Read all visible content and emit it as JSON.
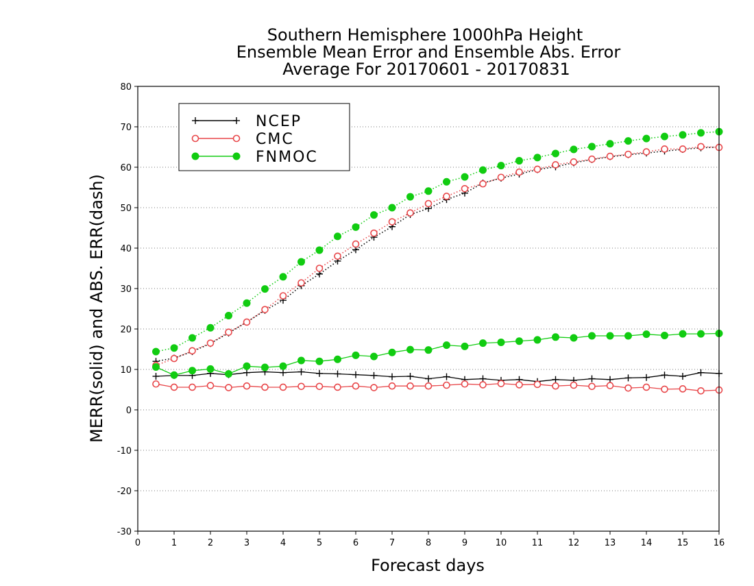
{
  "chart_data": {
    "type": "line",
    "title_lines": [
      "Southern Hemisphere 1000hPa Height",
      "Ensemble Mean Error and Ensemble Abs. Error",
      "Average For 20170601 - 20170831"
    ],
    "xlabel": "Forecast days",
    "ylabel": "MERR(solid) and ABS. ERR(dash)",
    "xlim": [
      0,
      16
    ],
    "ylim": [
      -30,
      80
    ],
    "x_ticks": [
      "0",
      "1",
      "2",
      "3",
      "4",
      "5",
      "6",
      "7",
      "8",
      "9",
      "10",
      "11",
      "12",
      "13",
      "14",
      "15",
      "16"
    ],
    "y_ticks": [
      "80",
      "70",
      "60",
      "50",
      "40",
      "30",
      "20",
      "10",
      "0",
      "-10",
      "-20",
      "-30"
    ],
    "grid": "horizontal dotted",
    "legend_position": "top-left",
    "x": [
      0.5,
      1,
      1.5,
      2,
      2.5,
      3,
      3.5,
      4,
      4.5,
      5,
      5.5,
      6,
      6.5,
      7,
      7.5,
      8,
      8.5,
      9,
      9.5,
      10,
      10.5,
      11,
      11.5,
      12,
      12.5,
      13,
      13.5,
      14,
      14.5,
      15,
      15.5,
      16
    ],
    "series": [
      {
        "name": "NCEP",
        "color": "#000000",
        "marker": "plus",
        "merr": [
          8.3,
          8.5,
          8.5,
          9.0,
          8.7,
          9.2,
          9.4,
          9.2,
          9.4,
          9.0,
          8.9,
          8.7,
          8.5,
          8.2,
          8.3,
          7.7,
          8.2,
          7.5,
          7.7,
          7.3,
          7.5,
          7.0,
          7.5,
          7.3,
          7.7,
          7.5,
          7.9,
          8.0,
          8.6,
          8.3,
          9.2,
          9.0
        ],
        "abs_err": [
          12.0,
          12.8,
          14.4,
          16.4,
          19.0,
          21.7,
          24.6,
          27.1,
          30.7,
          33.6,
          36.8,
          39.6,
          42.7,
          45.3,
          48.3,
          49.8,
          52.0,
          53.6,
          56.1,
          57.3,
          58.3,
          59.4,
          60.1,
          61.1,
          61.9,
          62.6,
          63.1,
          63.5,
          64.0,
          64.4,
          64.8,
          65.0
        ]
      },
      {
        "name": "CMC",
        "color": "#e8474a",
        "marker": "open-circle",
        "merr": [
          6.4,
          5.6,
          5.6,
          6.0,
          5.5,
          5.9,
          5.6,
          5.6,
          5.8,
          5.8,
          5.6,
          5.9,
          5.5,
          5.9,
          5.9,
          5.9,
          6.1,
          6.4,
          6.2,
          6.5,
          6.2,
          6.3,
          5.9,
          6.1,
          5.8,
          6.0,
          5.4,
          5.6,
          5.1,
          5.2,
          4.7,
          4.9
        ],
        "abs_err": [
          11.0,
          12.7,
          14.6,
          16.5,
          19.2,
          21.7,
          24.8,
          28.2,
          31.4,
          35.0,
          38.0,
          41.0,
          43.7,
          46.5,
          48.7,
          51.0,
          52.8,
          54.7,
          55.9,
          57.5,
          58.8,
          59.5,
          60.6,
          61.3,
          62.0,
          62.7,
          63.2,
          63.8,
          64.5,
          64.5,
          65.1,
          64.9
        ]
      },
      {
        "name": "FNMOC",
        "color": "#11cc11",
        "marker": "filled-circle",
        "merr": [
          10.6,
          8.6,
          9.7,
          10.1,
          8.9,
          10.8,
          10.5,
          10.8,
          12.2,
          12.0,
          12.5,
          13.5,
          13.2,
          14.2,
          14.9,
          14.8,
          16.0,
          15.7,
          16.5,
          16.7,
          17.0,
          17.3,
          18.0,
          17.8,
          18.3,
          18.3,
          18.3,
          18.7,
          18.4,
          18.8,
          18.8,
          18.9
        ],
        "abs_err": [
          14.4,
          15.3,
          17.8,
          20.3,
          23.3,
          26.4,
          29.9,
          32.9,
          36.6,
          39.5,
          42.9,
          45.2,
          48.2,
          50.0,
          52.7,
          54.1,
          56.4,
          57.6,
          59.3,
          60.4,
          61.6,
          62.4,
          63.4,
          64.4,
          65.1,
          65.8,
          66.5,
          67.1,
          67.6,
          68.0,
          68.5,
          68.8
        ]
      }
    ]
  }
}
